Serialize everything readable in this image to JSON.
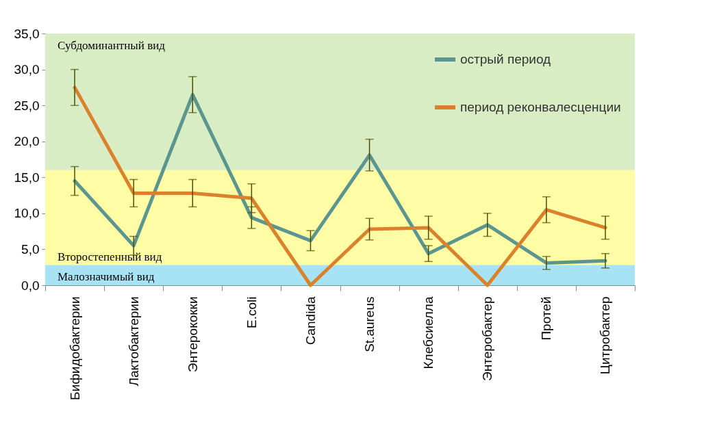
{
  "chart_data": {
    "type": "line",
    "categories": [
      "Бифидобактерии",
      "Лактобактерии",
      "Энтерококки",
      "E.coli",
      "Candida",
      "St.aureus",
      "Клебсиелла",
      "Энтеробактер",
      "Протей",
      "Цитробактер"
    ],
    "series": [
      {
        "name": "острый период",
        "color": "#5b9590",
        "values": [
          14.5,
          5.5,
          26.5,
          9.4,
          6.2,
          18.1,
          4.4,
          8.4,
          3.1,
          3.4
        ],
        "errors": [
          2.0,
          1.3,
          2.5,
          1.5,
          1.4,
          2.2,
          1.1,
          1.6,
          0.9,
          1.0
        ]
      },
      {
        "name": "период реконвалесценции",
        "color": "#d9822b",
        "values": [
          27.5,
          12.8,
          12.8,
          12.1,
          0,
          7.8,
          8.0,
          0,
          10.5,
          8.0
        ],
        "errors": [
          2.5,
          1.9,
          1.9,
          2.0,
          null,
          1.5,
          1.6,
          null,
          1.8,
          1.6
        ]
      }
    ],
    "ylim": [
      0,
      35
    ],
    "yticks": [
      {
        "value": 0,
        "label": "0,0"
      },
      {
        "value": 5,
        "label": "5,0"
      },
      {
        "value": 10,
        "label": "10,0"
      },
      {
        "value": 15,
        "label": "15,0"
      },
      {
        "value": 20,
        "label": "20,0"
      },
      {
        "value": 25,
        "label": "25,0"
      },
      {
        "value": 30,
        "label": "30,0"
      },
      {
        "value": 35,
        "label": "35,0"
      }
    ],
    "bands": [
      {
        "axis": "y",
        "from": 16,
        "to": 35,
        "label": "Субдоминантный вид",
        "color": "#d9edc4"
      },
      {
        "axis": "y",
        "from": 2.8,
        "to": 16,
        "label": "Второстепенный вид",
        "color": "#fffca6"
      },
      {
        "axis": "y",
        "from": 0,
        "to": 2.8,
        "label": "Малозначимый вид",
        "color": "#a8e2f5"
      }
    ],
    "grid": false,
    "legend": "top right"
  }
}
